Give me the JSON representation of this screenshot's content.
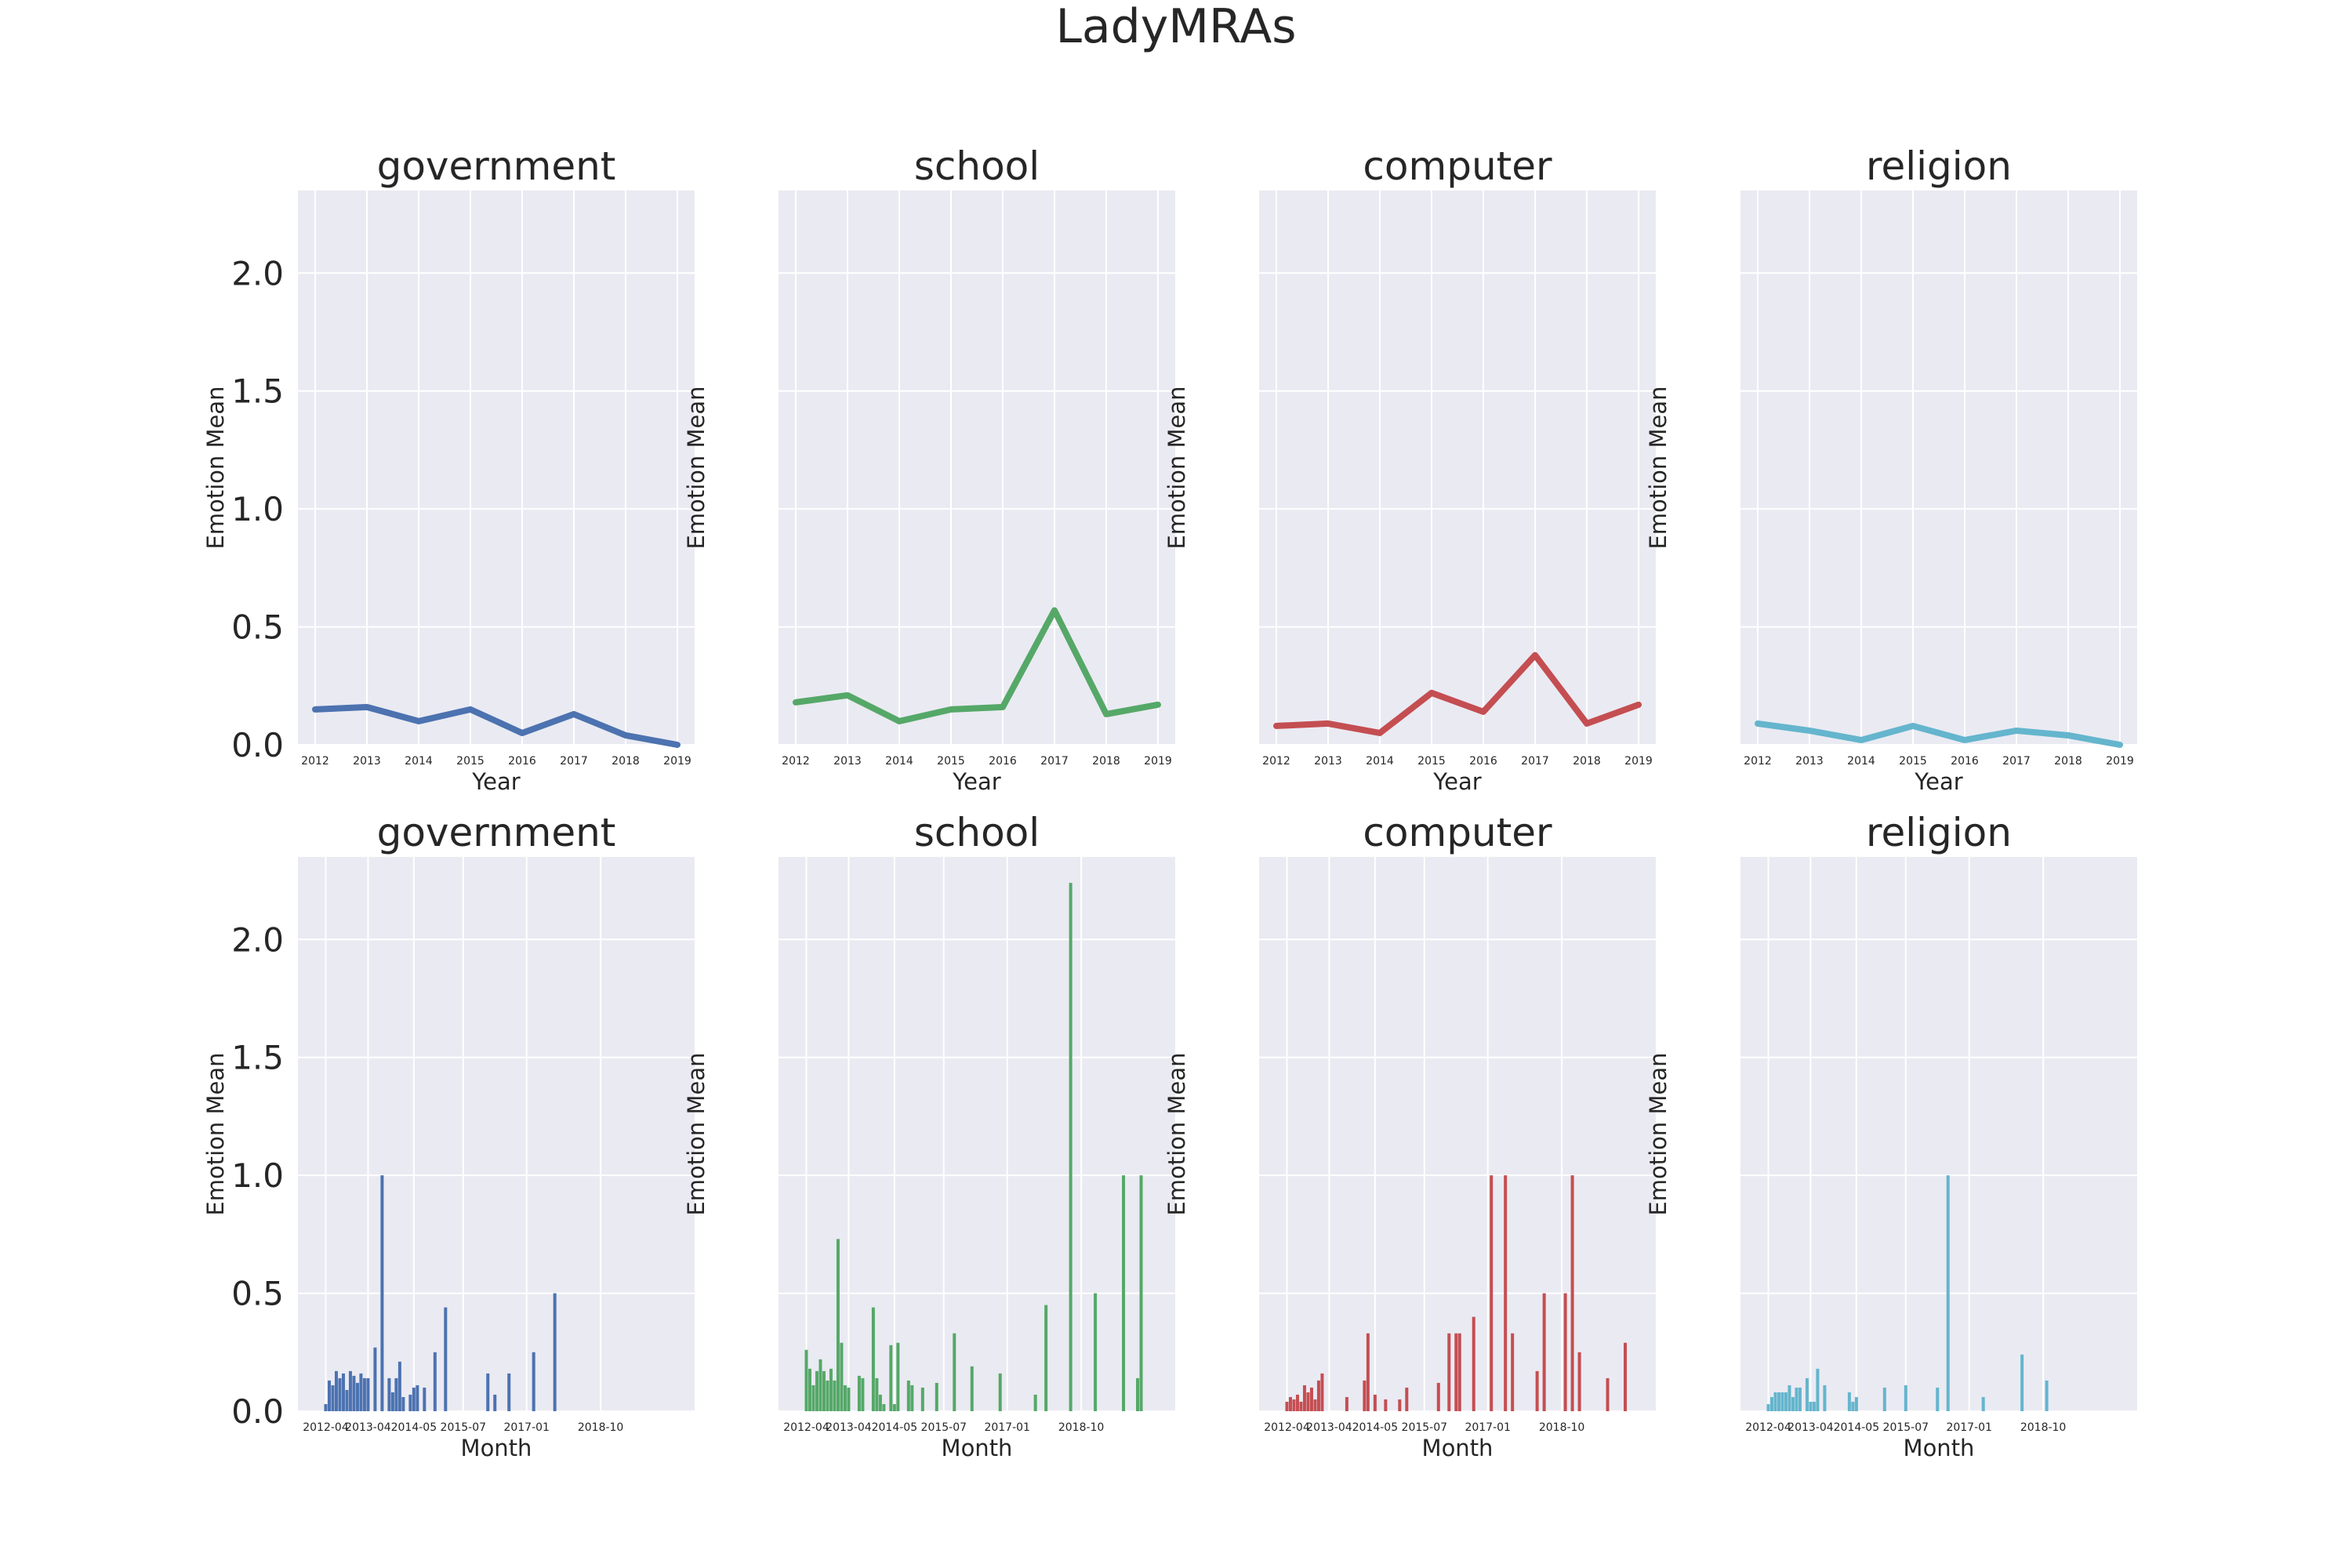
{
  "figure": {
    "title": "LadyMRAs"
  },
  "chart_data": [
    {
      "type": "line",
      "title": "government",
      "xlabel": "Year",
      "ylabel": "Emotion Mean",
      "x": [
        "2012",
        "2013",
        "2014",
        "2015",
        "2016",
        "2017",
        "2018",
        "2019"
      ],
      "values": [
        0.15,
        0.16,
        0.1,
        0.15,
        0.05,
        0.13,
        0.04,
        0.0
      ],
      "color": "#4C72B0",
      "ylim": [
        0,
        2.35
      ],
      "yticks": [
        "0.0",
        "0.5",
        "1.0",
        "1.5",
        "2.0"
      ]
    },
    {
      "type": "line",
      "title": "school",
      "xlabel": "Year",
      "ylabel": "Emotion Mean",
      "x": [
        "2012",
        "2013",
        "2014",
        "2015",
        "2016",
        "2017",
        "2018",
        "2019"
      ],
      "values": [
        0.18,
        0.21,
        0.1,
        0.15,
        0.16,
        0.57,
        0.13,
        0.17
      ],
      "color": "#55A868",
      "ylim": [
        0,
        2.35
      ]
    },
    {
      "type": "line",
      "title": "computer",
      "xlabel": "Year",
      "ylabel": "Emotion Mean",
      "x": [
        "2012",
        "2013",
        "2014",
        "2015",
        "2016",
        "2017",
        "2018",
        "2019"
      ],
      "values": [
        0.08,
        0.09,
        0.05,
        0.22,
        0.14,
        0.38,
        0.09,
        0.17
      ],
      "color": "#C44E52",
      "ylim": [
        0,
        2.35
      ]
    },
    {
      "type": "line",
      "title": "religion",
      "xlabel": "Year",
      "ylabel": "Emotion Mean",
      "x": [
        "2012",
        "2013",
        "2014",
        "2015",
        "2016",
        "2017",
        "2018",
        "2019"
      ],
      "values": [
        0.09,
        0.06,
        0.02,
        0.08,
        0.02,
        0.06,
        0.04,
        0.0
      ],
      "color": "#64B5CD",
      "ylim": [
        0,
        2.35
      ]
    },
    {
      "type": "bar",
      "title": "government",
      "xlabel": "Month",
      "ylabel": "Emotion Mean",
      "xtick_labels": [
        "2012-04",
        "2013-04",
        "2014-05",
        "2015-07",
        "2017-01",
        "2018-10"
      ],
      "color": "#4C72B0",
      "ylim": [
        0,
        2.35
      ],
      "yticks": [
        "0.0",
        "0.5",
        "1.0",
        "1.5",
        "2.0"
      ],
      "points": [
        [
          "2012-04",
          0.03
        ],
        [
          "2012-05",
          0.13
        ],
        [
          "2012-06",
          0.11
        ],
        [
          "2012-07",
          0.17
        ],
        [
          "2012-08",
          0.14
        ],
        [
          "2012-09",
          0.16
        ],
        [
          "2012-10",
          0.09
        ],
        [
          "2012-11",
          0.17
        ],
        [
          "2012-12",
          0.15
        ],
        [
          "2013-01",
          0.12
        ],
        [
          "2013-02",
          0.16
        ],
        [
          "2013-03",
          0.14
        ],
        [
          "2013-04",
          0.14
        ],
        [
          "2013-06",
          0.27
        ],
        [
          "2013-08",
          1.0
        ],
        [
          "2013-10",
          0.14
        ],
        [
          "2013-11",
          0.08
        ],
        [
          "2013-12",
          0.14
        ],
        [
          "2014-01",
          0.21
        ],
        [
          "2014-02",
          0.06
        ],
        [
          "2014-04",
          0.07
        ],
        [
          "2014-05",
          0.1
        ],
        [
          "2014-06",
          0.11
        ],
        [
          "2014-08",
          0.1
        ],
        [
          "2014-11",
          0.25
        ],
        [
          "2015-02",
          0.44
        ],
        [
          "2016-02",
          0.16
        ],
        [
          "2016-04",
          0.07
        ],
        [
          "2016-08",
          0.16
        ],
        [
          "2017-03",
          0.25
        ],
        [
          "2017-09",
          0.5
        ]
      ]
    },
    {
      "type": "bar",
      "title": "school",
      "xlabel": "Month",
      "ylabel": "Emotion Mean",
      "xtick_labels": [
        "2012-04",
        "2013-04",
        "2014-05",
        "2015-07",
        "2017-01",
        "2018-10"
      ],
      "color": "#55A868",
      "ylim": [
        0,
        2.35
      ],
      "points": [
        [
          "2012-04",
          0.26
        ],
        [
          "2012-05",
          0.18
        ],
        [
          "2012-06",
          0.11
        ],
        [
          "2012-07",
          0.17
        ],
        [
          "2012-08",
          0.22
        ],
        [
          "2012-09",
          0.17
        ],
        [
          "2012-10",
          0.13
        ],
        [
          "2012-11",
          0.18
        ],
        [
          "2012-12",
          0.13
        ],
        [
          "2013-01",
          0.73
        ],
        [
          "2013-02",
          0.29
        ],
        [
          "2013-03",
          0.11
        ],
        [
          "2013-04",
          0.1
        ],
        [
          "2013-07",
          0.15
        ],
        [
          "2013-08",
          0.14
        ],
        [
          "2013-11",
          0.44
        ],
        [
          "2013-12",
          0.14
        ],
        [
          "2014-01",
          0.07
        ],
        [
          "2014-02",
          0.03
        ],
        [
          "2014-04",
          0.28
        ],
        [
          "2014-05",
          0.03
        ],
        [
          "2014-06",
          0.29
        ],
        [
          "2014-09",
          0.13
        ],
        [
          "2014-10",
          0.11
        ],
        [
          "2015-01",
          0.1
        ],
        [
          "2015-05",
          0.12
        ],
        [
          "2015-10",
          0.33
        ],
        [
          "2016-03",
          0.19
        ],
        [
          "2016-11",
          0.16
        ],
        [
          "2017-09",
          0.07
        ],
        [
          "2017-12",
          0.45
        ],
        [
          "2018-07",
          2.24
        ],
        [
          "2019-02",
          0.5
        ],
        [
          "2019-10",
          1.0
        ],
        [
          "2020-02",
          0.14
        ],
        [
          "2020-03",
          1.0
        ]
      ]
    },
    {
      "type": "bar",
      "title": "computer",
      "xlabel": "Month",
      "ylabel": "Emotion Mean",
      "xtick_labels": [
        "2012-04",
        "2013-04",
        "2014-05",
        "2015-07",
        "2017-01",
        "2018-10"
      ],
      "color": "#C44E52",
      "ylim": [
        0,
        2.35
      ],
      "points": [
        [
          "2012-04",
          0.04
        ],
        [
          "2012-05",
          0.06
        ],
        [
          "2012-06",
          0.05
        ],
        [
          "2012-07",
          0.07
        ],
        [
          "2012-08",
          0.04
        ],
        [
          "2012-09",
          0.11
        ],
        [
          "2012-10",
          0.08
        ],
        [
          "2012-11",
          0.1
        ],
        [
          "2012-12",
          0.05
        ],
        [
          "2013-01",
          0.13
        ],
        [
          "2013-02",
          0.16
        ],
        [
          "2013-09",
          0.06
        ],
        [
          "2014-02",
          0.13
        ],
        [
          "2014-03",
          0.33
        ],
        [
          "2014-05",
          0.07
        ],
        [
          "2014-08",
          0.05
        ],
        [
          "2014-12",
          0.05
        ],
        [
          "2015-02",
          0.1
        ],
        [
          "2015-11",
          0.12
        ],
        [
          "2016-02",
          0.33
        ],
        [
          "2016-04",
          0.33
        ],
        [
          "2016-05",
          0.33
        ],
        [
          "2016-09",
          0.4
        ],
        [
          "2017-02",
          1.0
        ],
        [
          "2017-06",
          1.0
        ],
        [
          "2017-08",
          0.33
        ],
        [
          "2018-03",
          0.17
        ],
        [
          "2018-05",
          0.5
        ],
        [
          "2018-11",
          0.5
        ],
        [
          "2019-01",
          1.0
        ],
        [
          "2019-03",
          0.25
        ],
        [
          "2019-11",
          0.14
        ],
        [
          "2020-04",
          0.29
        ]
      ]
    },
    {
      "type": "bar",
      "title": "religion",
      "xlabel": "Month",
      "ylabel": "Emotion Mean",
      "xtick_labels": [
        "2012-04",
        "2013-04",
        "2014-05",
        "2015-07",
        "2017-01",
        "2018-10"
      ],
      "color": "#64B5CD",
      "ylim": [
        0,
        2.35
      ],
      "points": [
        [
          "2012-04",
          0.03
        ],
        [
          "2012-05",
          0.06
        ],
        [
          "2012-06",
          0.08
        ],
        [
          "2012-07",
          0.08
        ],
        [
          "2012-08",
          0.08
        ],
        [
          "2012-09",
          0.08
        ],
        [
          "2012-10",
          0.11
        ],
        [
          "2012-11",
          0.06
        ],
        [
          "2012-12",
          0.1
        ],
        [
          "2013-01",
          0.1
        ],
        [
          "2013-03",
          0.14
        ],
        [
          "2013-04",
          0.04
        ],
        [
          "2013-05",
          0.04
        ],
        [
          "2013-06",
          0.18
        ],
        [
          "2013-08",
          0.11
        ],
        [
          "2014-03",
          0.08
        ],
        [
          "2014-04",
          0.04
        ],
        [
          "2014-05",
          0.06
        ],
        [
          "2015-01",
          0.1
        ],
        [
          "2015-07",
          0.11
        ],
        [
          "2016-04",
          0.1
        ],
        [
          "2016-07",
          1.0
        ],
        [
          "2017-05",
          0.06
        ],
        [
          "2018-04",
          0.24
        ],
        [
          "2018-11",
          0.13
        ]
      ]
    }
  ]
}
